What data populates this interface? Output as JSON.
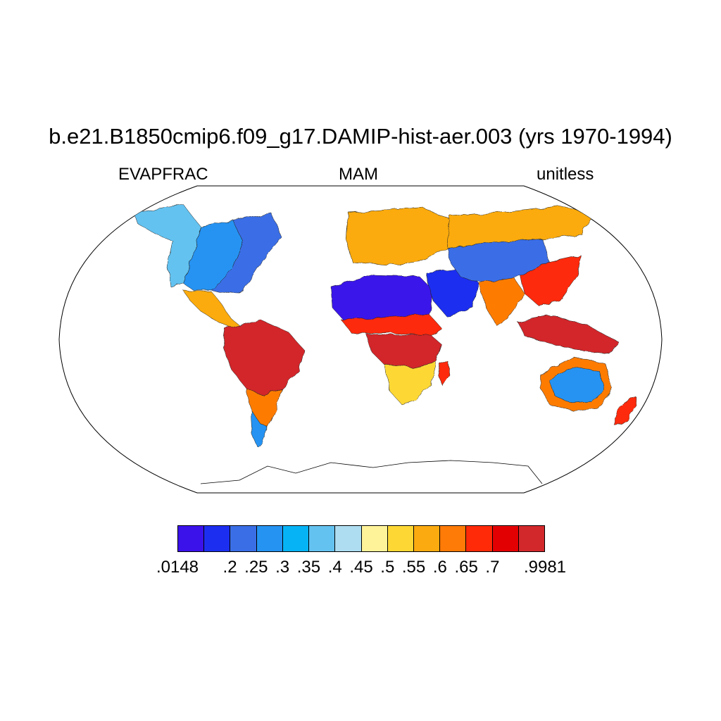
{
  "title": "b.e21.B1850cmip6.f09_g17.DAMIP-hist-aer.003 (yrs 1970-1994)",
  "left_label": "EVAPFRAC",
  "center_label": "MAM",
  "right_label": "unitless",
  "colorbar": {
    "colors": [
      "#3b12ea",
      "#1c2ff0",
      "#3a6ee6",
      "#2593f2",
      "#06b4f6",
      "#64c2f0",
      "#aedcf0",
      "#fff39a",
      "#fdd835",
      "#fbab10",
      "#fd7b06",
      "#fe2a08",
      "#e30003",
      "#d2282c"
    ],
    "labels": [
      {
        "text": ".0148",
        "boundary": 0
      },
      {
        "text": ".2",
        "boundary": 2
      },
      {
        "text": ".25",
        "boundary": 3
      },
      {
        "text": ".3",
        "boundary": 4
      },
      {
        "text": ".35",
        "boundary": 5
      },
      {
        "text": ".4",
        "boundary": 6
      },
      {
        "text": ".45",
        "boundary": 7
      },
      {
        "text": ".5",
        "boundary": 8
      },
      {
        "text": ".55",
        "boundary": 9
      },
      {
        "text": ".6",
        "boundary": 10
      },
      {
        "text": ".65",
        "boundary": 11
      },
      {
        "text": ".7",
        "boundary": 12
      },
      {
        "text": ".9981",
        "boundary": 14
      }
    ]
  },
  "map": {
    "projection": "Robinson",
    "background": "#ffffff",
    "regions": [
      {
        "name": "north-america-west",
        "color": "#64c2f0"
      },
      {
        "name": "north-america-central",
        "color": "#2593f2"
      },
      {
        "name": "north-america-east",
        "color": "#3a6ee6"
      },
      {
        "name": "mexico-central-america",
        "color": "#fbab10"
      },
      {
        "name": "south-america-amazon",
        "color": "#d2282c"
      },
      {
        "name": "south-america-south",
        "color": "#fd7b06"
      },
      {
        "name": "patagonia",
        "color": "#2593f2"
      },
      {
        "name": "europe",
        "color": "#fbab10"
      },
      {
        "name": "sahara",
        "color": "#3b12ea"
      },
      {
        "name": "arabia",
        "color": "#1c2ff0"
      },
      {
        "name": "sahel",
        "color": "#fe2a08"
      },
      {
        "name": "central-africa",
        "color": "#d2282c"
      },
      {
        "name": "southern-africa",
        "color": "#fdd835"
      },
      {
        "name": "madagascar",
        "color": "#fe2a08"
      },
      {
        "name": "central-asia",
        "color": "#3a6ee6"
      },
      {
        "name": "siberia",
        "color": "#fbab10"
      },
      {
        "name": "india",
        "color": "#fd7b06"
      },
      {
        "name": "east-asia",
        "color": "#fe2a08"
      },
      {
        "name": "southeast-asia",
        "color": "#d2282c"
      },
      {
        "name": "australia-interior",
        "color": "#2593f2"
      },
      {
        "name": "australia-coast",
        "color": "#fd7b06"
      },
      {
        "name": "new-zealand",
        "color": "#fe2a08"
      }
    ]
  }
}
